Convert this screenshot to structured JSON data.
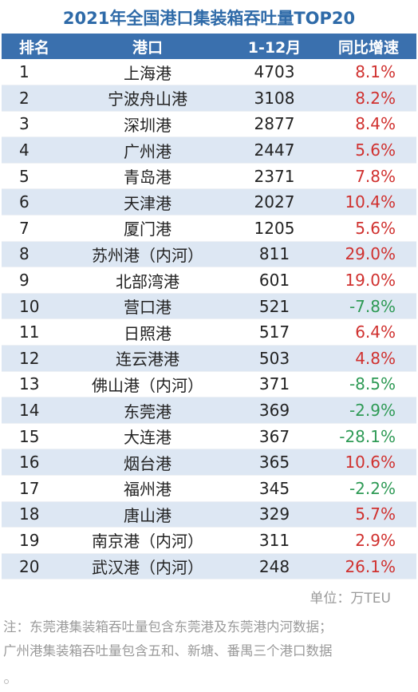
{
  "title": "2021年全国港口集装箱吞吐量TOP20",
  "headers": {
    "rank": "排名",
    "port": "港口",
    "volume": "1-12月",
    "growth": "同比增速"
  },
  "rows": [
    {
      "rank": "1",
      "port": "上海港",
      "volume": "4703",
      "growth": "8.1%"
    },
    {
      "rank": "2",
      "port": "宁波舟山港",
      "volume": "3108",
      "growth": "8.2%"
    },
    {
      "rank": "3",
      "port": "深圳港",
      "volume": "2877",
      "growth": "8.4%"
    },
    {
      "rank": "4",
      "port": "广州港",
      "volume": "2447",
      "growth": "5.6%"
    },
    {
      "rank": "5",
      "port": "青岛港",
      "volume": "2371",
      "growth": "7.8%"
    },
    {
      "rank": "6",
      "port": "天津港",
      "volume": "2027",
      "growth": "10.4%"
    },
    {
      "rank": "7",
      "port": "厦门港",
      "volume": "1205",
      "growth": "5.6%"
    },
    {
      "rank": "8",
      "port": "苏州港（内河）",
      "volume": "811",
      "growth": "29.0%"
    },
    {
      "rank": "9",
      "port": "北部湾港",
      "volume": "601",
      "growth": "19.0%"
    },
    {
      "rank": "10",
      "port": "营口港",
      "volume": "521",
      "growth": "-7.8%"
    },
    {
      "rank": "11",
      "port": "日照港",
      "volume": "517",
      "growth": "6.4%"
    },
    {
      "rank": "12",
      "port": "连云港港",
      "volume": "503",
      "growth": "4.8%"
    },
    {
      "rank": "13",
      "port": "佛山港（内河）",
      "volume": "371",
      "growth": "-8.5%"
    },
    {
      "rank": "14",
      "port": "东莞港",
      "volume": "369",
      "growth": "-2.9%"
    },
    {
      "rank": "15",
      "port": "大连港",
      "volume": "367",
      "growth": "-28.1%"
    },
    {
      "rank": "16",
      "port": "烟台港",
      "volume": "365",
      "growth": "10.6%"
    },
    {
      "rank": "17",
      "port": "福州港",
      "volume": "345",
      "growth": "-2.2%"
    },
    {
      "rank": "18",
      "port": "唐山港",
      "volume": "329",
      "growth": "5.7%"
    },
    {
      "rank": "19",
      "port": "南京港（内河）",
      "volume": "311",
      "growth": "2.9%"
    },
    {
      "rank": "20",
      "port": "武汉港（内河）",
      "volume": "248",
      "growth": "26.1%"
    }
  ],
  "unit": "单位：万TEU",
  "notes": [
    "注：东莞港集装箱吞吐量包含东莞港及东莞港内河数据；",
    "广州港集装箱吞吐量包含五和、新塘、番禺三个港口数据"
  ],
  "colors": {
    "title": "#2e6aa8",
    "header_bg": "#3a70ae",
    "stripe": "#dde7f3",
    "positive": "#d0312f",
    "negative": "#2e9a55",
    "note": "#9a9a9a"
  }
}
